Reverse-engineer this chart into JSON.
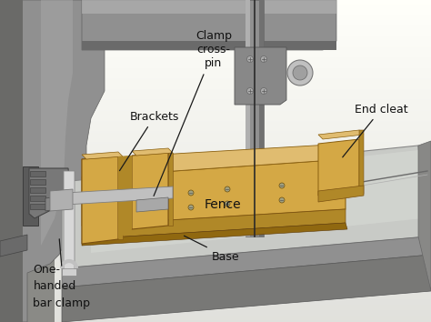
{
  "bg_color": "#c8c9c5",
  "bg_gradient_top": "#d5d4cf",
  "bg_gradient_bottom": "#b0b0ac",
  "machine_body_color": "#8c8c8c",
  "machine_dark": "#5a5a5a",
  "machine_mid": "#7a7a7a",
  "machine_light": "#b0b0b0",
  "machine_highlight": "#c8c8c8",
  "table_top_color": "#c0c2be",
  "table_top_light": "#d8d8d4",
  "table_side_color": "#8a8a88",
  "table_edge_color": "#6a6a68",
  "fence_face_color": "#d4a845",
  "fence_top_color": "#e0bc70",
  "fence_shadow_color": "#b08828",
  "fence_dark_color": "#906810",
  "clamp_color": "#7a7a7a",
  "clamp_dark": "#444444",
  "clamp_light": "#aaaaaa",
  "blade_color": "#333333",
  "arrow_color": "#1a1a1a",
  "text_color": "#111111",
  "font_size": 9.0,
  "labels": {
    "brackets": "Brackets",
    "clamp_cross_pin": "Clamp\ncross-\npin",
    "end_cleat": "End cleat",
    "fence": "Fence",
    "base": "Base",
    "one_handed": "One-\nhanded\nbar clamp"
  }
}
